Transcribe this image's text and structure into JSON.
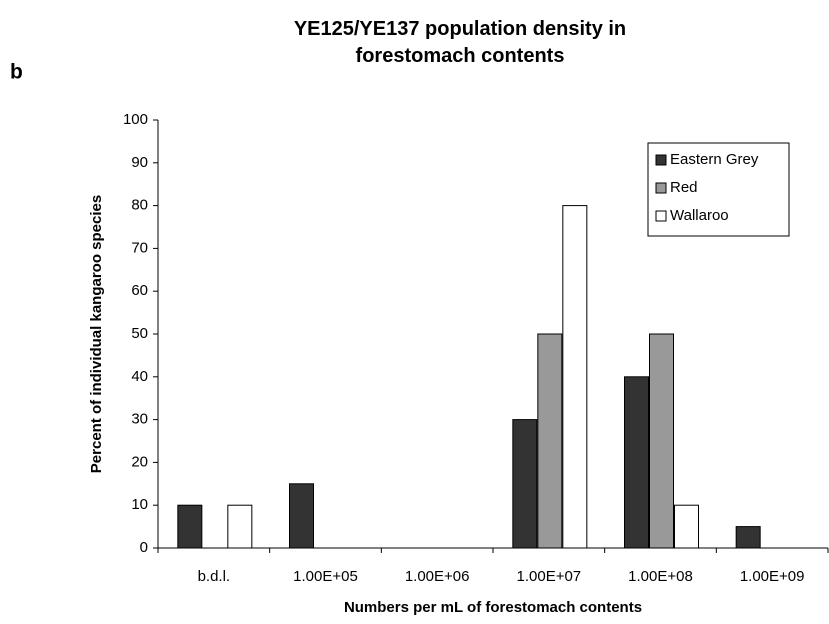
{
  "chart_data": {
    "type": "bar",
    "title": "YE125/YE137 population density in forestomach contents",
    "panel_label": "b",
    "x_label": "Numbers per mL of forestomach contents",
    "y_label": "Percent of individual kangaroo species",
    "categories": [
      "b.d.l.",
      "1.00E+05",
      "1.00E+06",
      "1.00E+07",
      "1.00E+08",
      "1.00E+09"
    ],
    "series": [
      {
        "name": "Eastern Grey",
        "color": "#333333",
        "values": [
          10,
          15,
          0,
          30,
          40,
          5
        ]
      },
      {
        "name": "Red",
        "color": "#999999",
        "values": [
          0,
          0,
          0,
          50,
          50,
          0
        ]
      },
      {
        "name": "Wallaroo",
        "color": "#ffffff",
        "values": [
          10,
          0,
          0,
          80,
          10,
          0
        ]
      }
    ],
    "ylim": [
      0,
      100
    ],
    "yticks": [
      0,
      10,
      20,
      30,
      40,
      50,
      60,
      70,
      80,
      90,
      100
    ],
    "grid": false,
    "legend": "upper right"
  }
}
